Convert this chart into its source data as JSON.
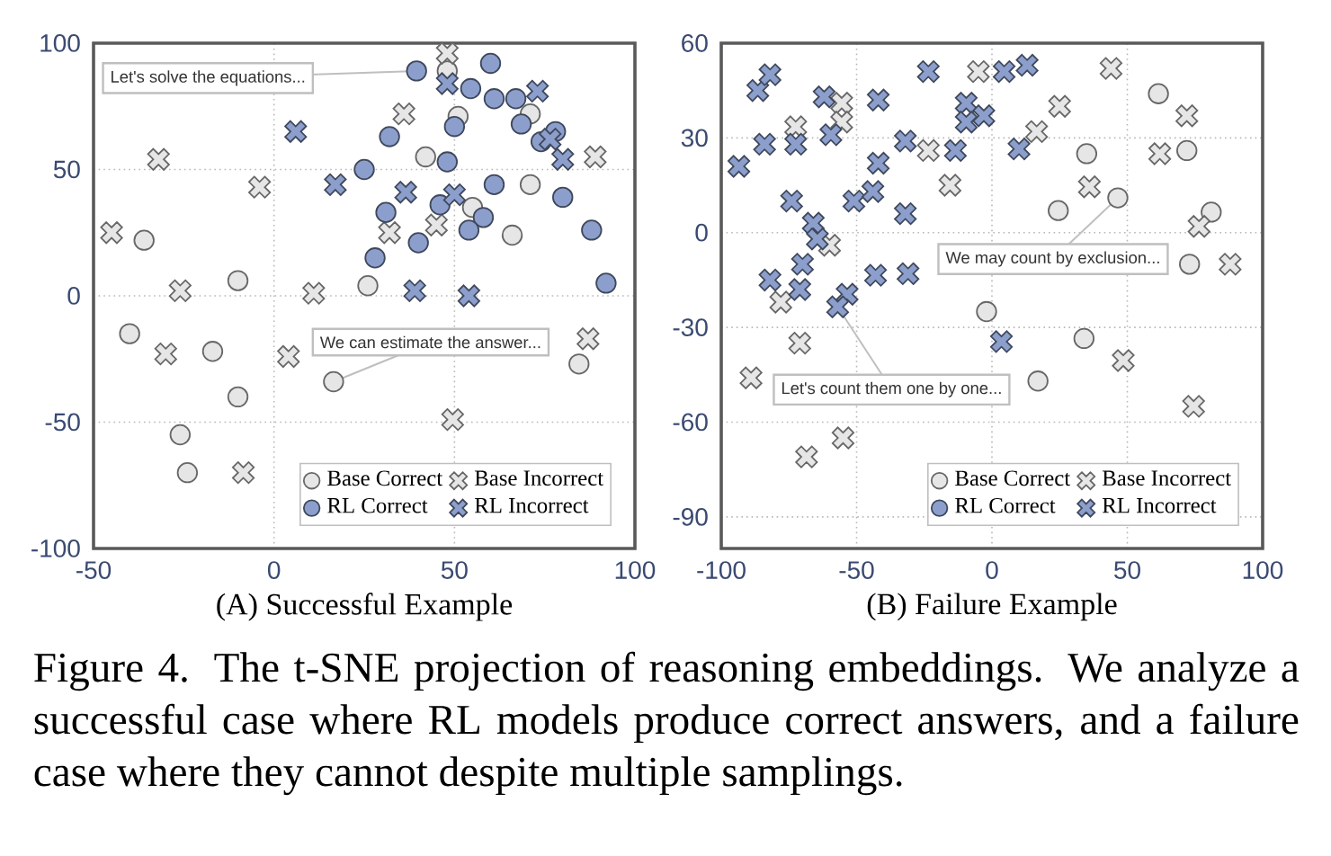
{
  "chart_data": [
    {
      "type": "scatter",
      "xlabel": "(A) Successful Example",
      "xlim": [
        -50,
        100
      ],
      "ylim": [
        -100,
        100
      ],
      "xticks": [
        -50,
        0,
        50,
        100
      ],
      "yticks": [
        -100,
        -50,
        0,
        50,
        100
      ],
      "grid": true,
      "legend": "bottom right",
      "series": [
        {
          "name": "Base Correct",
          "color": "#e6e6e6",
          "marker": "circle",
          "x": [
            48,
            51,
            42,
            71,
            71,
            55,
            66,
            -36,
            -10,
            26,
            -40,
            -17,
            -10,
            16.5,
            84.5,
            -26,
            -24
          ],
          "values": [
            89,
            71,
            55,
            72,
            44,
            35,
            24,
            22,
            6,
            4,
            -15,
            -22,
            -40,
            -34,
            -27,
            -55,
            -70
          ]
        },
        {
          "name": "Base Incorrect",
          "color": "#e6e6e6",
          "marker": "cross",
          "x": [
            48,
            36,
            -32,
            -4,
            -45,
            32,
            45,
            89,
            -26,
            11,
            -30,
            4,
            87,
            49.5,
            -8.5
          ],
          "values": [
            96,
            72,
            54,
            43,
            25,
            25,
            28,
            55,
            2,
            1,
            -23,
            -24,
            -17,
            -49,
            -70
          ]
        },
        {
          "name": "RL Correct",
          "color": "#8c9fcc",
          "marker": "circle",
          "x": [
            39.5,
            60,
            54.5,
            61,
            67,
            50,
            68.5,
            32,
            74,
            78,
            48,
            25,
            61,
            80,
            46,
            31,
            58,
            54,
            40,
            88,
            28,
            92
          ],
          "values": [
            89,
            92,
            82,
            78,
            78,
            67,
            68,
            63,
            61,
            65,
            53,
            50,
            44,
            39,
            36,
            33,
            31,
            26,
            21,
            26,
            15,
            5
          ]
        },
        {
          "name": "RL Incorrect",
          "color": "#8c9fcc",
          "marker": "cross",
          "x": [
            48,
            73,
            6,
            76.5,
            80,
            17,
            36.5,
            50,
            39,
            54
          ],
          "values": [
            84,
            81,
            65,
            62,
            54,
            44,
            41,
            40,
            2,
            0
          ]
        }
      ],
      "annotations": [
        {
          "text": "Let's solve the equations...",
          "x": 39.5,
          "y": 89
        },
        {
          "text": "We can estimate the answer...",
          "x": 16.5,
          "y": -34
        }
      ]
    },
    {
      "type": "scatter",
      "xlabel": "(B) Failure Example",
      "xlim": [
        -100,
        100
      ],
      "ylim": [
        -100,
        60
      ],
      "xticks": [
        -100,
        -50,
        0,
        50,
        100
      ],
      "yticks": [
        -90,
        -60,
        -30,
        0,
        30,
        60
      ],
      "grid": true,
      "legend": "bottom right",
      "series": [
        {
          "name": "Base Correct",
          "color": "#e6e6e6",
          "marker": "circle",
          "x": [
            61.5,
            72,
            35,
            24.5,
            46.5,
            81,
            73,
            -2,
            34,
            17
          ],
          "values": [
            44,
            26,
            25,
            7,
            11,
            6.5,
            -10,
            -25,
            -33.5,
            -47
          ]
        },
        {
          "name": "Base Incorrect",
          "color": "#e6e6e6",
          "marker": "cross",
          "x": [
            -72.5,
            -55.5,
            -55.5,
            -60,
            -23.5,
            -15.5,
            -5,
            16.5,
            25,
            44,
            36,
            62,
            72,
            76.5,
            88,
            -78,
            -71,
            -89,
            -55,
            -68.5,
            48.5,
            74.5
          ],
          "values": [
            33.5,
            41,
            35,
            -4,
            26,
            15,
            51,
            32,
            40,
            52,
            14.5,
            25,
            37,
            2,
            -10,
            -22,
            -35,
            -46,
            -65,
            -71,
            -40.5,
            -55
          ]
        },
        {
          "name": "RL Correct",
          "color": "#8c9fcc",
          "marker": "circle"
        },
        {
          "name": "RL Incorrect",
          "color": "#8c9fcc",
          "marker": "cross",
          "x": [
            -93.5,
            -86.5,
            -82,
            -84,
            -72.5,
            -62,
            -59.5,
            -74,
            -66,
            -64.5,
            -51,
            -44,
            -42,
            -42,
            -32,
            -32,
            -23.5,
            -13.5,
            -9.5,
            -9.5,
            -3,
            4.5,
            13,
            10,
            -82,
            -70,
            -71,
            -43,
            -31,
            -53.5,
            -57,
            3.5
          ],
          "values": [
            21,
            45,
            50,
            28,
            28,
            43,
            31,
            10,
            3,
            -2,
            10,
            13,
            42,
            22,
            29,
            6,
            51,
            26,
            41,
            35,
            37,
            51,
            53,
            26.5,
            -15,
            -10,
            -18,
            -13.5,
            -13,
            -19.5,
            -23.5,
            -34.5
          ]
        }
      ],
      "annotations": [
        {
          "text": "We may count by exclusion...",
          "x": 46.5,
          "y": 11
        },
        {
          "text": "Let's count them one by one...",
          "x": -57,
          "y": -23.5
        },
        "Figure 4. The t-SNE projection of reasoning embeddings. We analyze a successful case where RL models produce correct answers, and a failure case where they cannot despite multiple samplings."
      ]
    }
  ]
}
